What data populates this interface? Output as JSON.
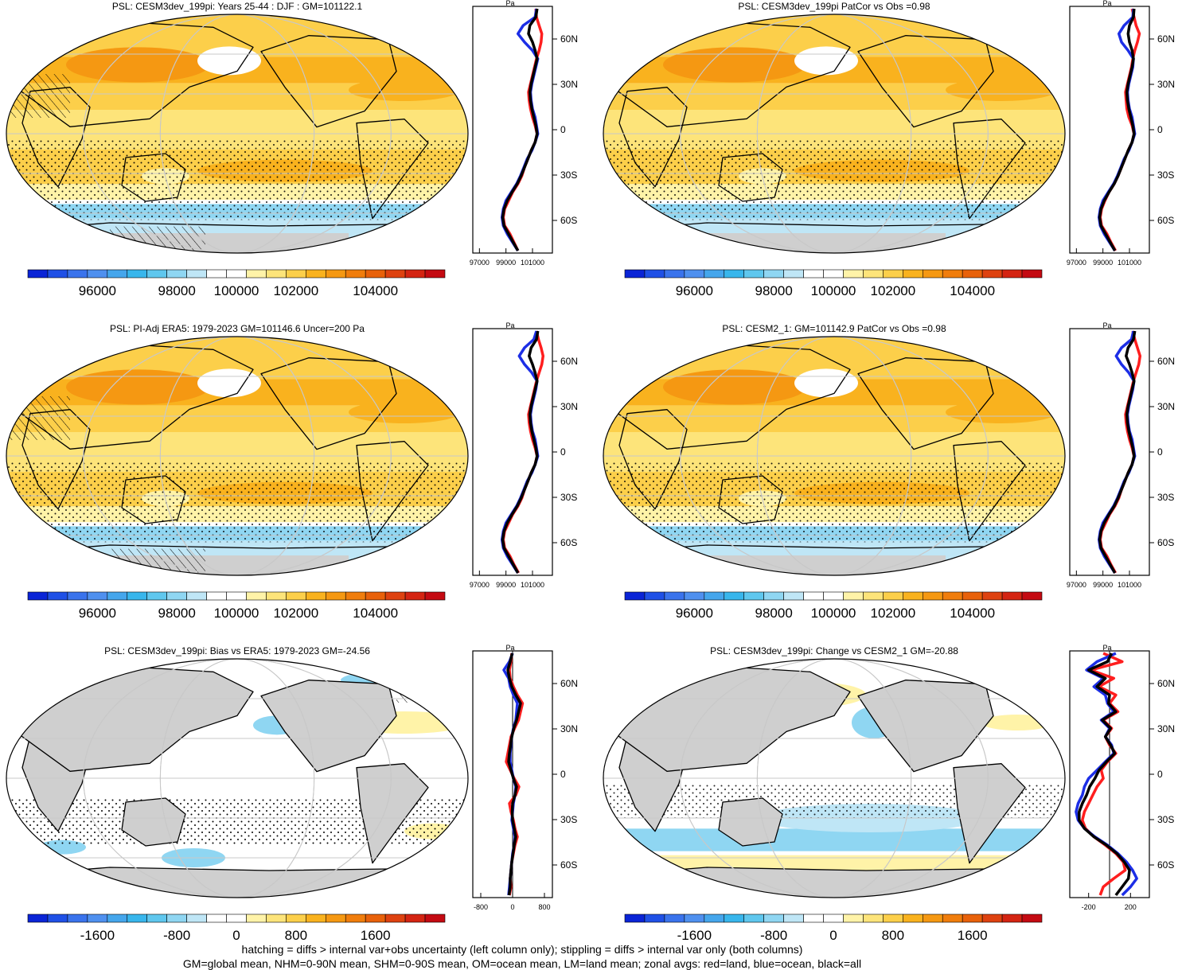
{
  "palettes": {
    "full": [
      "#0a24d6",
      "#1f50e6",
      "#3a73ec",
      "#4f90ef",
      "#45a6ec",
      "#38b6ec",
      "#5fc7ee",
      "#8fd6f2",
      "#bfe6f6",
      "#ffffff",
      "#ffffff",
      "#fff3a8",
      "#fde47a",
      "#fccf4a",
      "#f9b21e",
      "#f59812",
      "#f07d0c",
      "#e8610a",
      "#de4210",
      "#d42412",
      "#c40a12"
    ],
    "diff": [
      "#0a24d6",
      "#1f50e6",
      "#3a73ec",
      "#4f90ef",
      "#45a6ec",
      "#38b6ec",
      "#5fc7ee",
      "#8fd6f2",
      "#bfe6f6",
      "#ffffff",
      "#ffffff",
      "#fff3a8",
      "#fde47a",
      "#fccf4a",
      "#f9b21e",
      "#f59812",
      "#f07d0c",
      "#e8610a",
      "#de4210",
      "#d42412",
      "#c40a12"
    ]
  },
  "colors": {
    "land_line": "#ff1e1e",
    "ocean_line": "#1c2ee6",
    "all_line": "#000000",
    "missing": "#cfcfcf",
    "grid": "#c8c8c8"
  },
  "lat_ticks": [
    "60N",
    "30N",
    "0",
    "30S",
    "60S"
  ],
  "panels": [
    {
      "title": "PSL: CESM3dev_199pi: Years 25-44 : DJF : GM=101122.1",
      "kind": "full",
      "colorbar_labels": [
        "96000",
        "98000",
        "100000",
        "102000",
        "104000"
      ],
      "profile_unit": "Pa",
      "profile_ticks": [
        "97000",
        "99000",
        "101000"
      ],
      "profile_xlim": [
        96500,
        102500
      ],
      "lines": {
        "land": [
          101250,
          101300,
          101500,
          101700,
          101650,
          101500,
          101300,
          101150,
          101000,
          100850,
          100700,
          100750,
          100850,
          101000,
          101200,
          101350,
          101200,
          100900,
          100650,
          100400,
          100200,
          99900,
          99500,
          99200,
          98900,
          98800,
          98900,
          99300,
          99600,
          99900
        ],
        "ocean": [
          101300,
          101200,
          100300,
          99900,
          100400,
          101000,
          101400,
          101250,
          101100,
          100950,
          100850,
          100900,
          101000,
          101200,
          101300,
          101400,
          101200,
          100950,
          100600,
          100350,
          100100,
          99800,
          99400,
          99000,
          98800,
          98700,
          98800,
          99100,
          99500,
          99900
        ],
        "all": [
          101350,
          101250,
          100800,
          100700,
          101000,
          101200,
          101350,
          101200,
          101050,
          100900,
          100800,
          100850,
          100950,
          101100,
          101250,
          101350,
          101200,
          100900,
          100650,
          100400,
          100150,
          99850,
          99450,
          99100,
          98850,
          98750,
          98850,
          99200,
          99550,
          99900
        ]
      }
    },
    {
      "title": "PSL: CESM3dev_199pi PatCor vs Obs =0.98",
      "kind": "full",
      "colorbar_labels": [
        "96000",
        "98000",
        "100000",
        "102000",
        "104000"
      ],
      "profile_unit": "Pa",
      "profile_ticks": [
        "97000",
        "99000",
        "101000"
      ],
      "profile_xlim": [
        96500,
        102500
      ],
      "lines": {
        "land": [
          101200,
          101350,
          101500,
          101750,
          101600,
          101400,
          101250,
          101150,
          101000,
          100850,
          100700,
          100750,
          100800,
          100950,
          101200,
          101350,
          101200,
          100900,
          100650,
          100400,
          100150,
          99850,
          99450,
          99150,
          98900,
          98800,
          98900,
          99300,
          99600,
          99950
        ],
        "ocean": [
          101300,
          101250,
          100600,
          100200,
          100400,
          100900,
          101300,
          101250,
          101100,
          100950,
          100850,
          100900,
          101000,
          101200,
          101300,
          101400,
          101200,
          100950,
          100600,
          100350,
          100100,
          99800,
          99400,
          99000,
          98800,
          98700,
          98800,
          99100,
          99500,
          99900
        ],
        "all": [
          101350,
          101300,
          101000,
          100900,
          101000,
          101200,
          101300,
          101200,
          101050,
          100900,
          100800,
          100850,
          100950,
          101100,
          101250,
          101350,
          101200,
          100900,
          100650,
          100400,
          100150,
          99850,
          99450,
          99100,
          98850,
          98750,
          98850,
          99200,
          99550,
          99900
        ]
      }
    },
    {
      "title": "PSL: PI-Adj ERA5: 1979-2023 GM=101146.6 Uncer=200 Pa",
      "kind": "full",
      "colorbar_labels": [
        "96000",
        "98000",
        "100000",
        "102000",
        "104000"
      ],
      "profile_unit": "Pa",
      "profile_ticks": [
        "97000",
        "99000",
        "101000"
      ],
      "profile_xlim": [
        96500,
        102500
      ],
      "lines": {
        "land": [
          101300,
          101450,
          101650,
          101800,
          101700,
          101500,
          101300,
          101150,
          101000,
          100850,
          100700,
          100750,
          100850,
          101000,
          101200,
          101350,
          101200,
          100900,
          100650,
          100400,
          100200,
          99900,
          99500,
          99200,
          98900,
          98800,
          98900,
          99300,
          99600,
          99950
        ],
        "ocean": [
          101300,
          101100,
          100400,
          100000,
          100400,
          100950,
          101350,
          101250,
          101100,
          100950,
          100850,
          100900,
          101000,
          101200,
          101300,
          101400,
          101200,
          100950,
          100600,
          100350,
          100100,
          99800,
          99400,
          99000,
          98800,
          98700,
          98800,
          99100,
          99500,
          99900
        ],
        "all": [
          101400,
          101300,
          100900,
          100750,
          101000,
          101200,
          101350,
          101200,
          101050,
          100900,
          100800,
          100850,
          100950,
          101100,
          101250,
          101350,
          101200,
          100900,
          100650,
          100400,
          100150,
          99850,
          99450,
          99100,
          98850,
          98750,
          98850,
          99200,
          99550,
          99900
        ]
      }
    },
    {
      "title": "PSL: CESM2_1: GM=101142.9 PatCor vs Obs =0.98",
      "kind": "full",
      "colorbar_labels": [
        "96000",
        "98000",
        "100000",
        "102000",
        "104000"
      ],
      "profile_unit": "Pa",
      "profile_ticks": [
        "97000",
        "99000",
        "101000"
      ],
      "profile_xlim": [
        96500,
        102500
      ],
      "lines": {
        "land": [
          101250,
          101400,
          101600,
          101800,
          101700,
          101500,
          101300,
          101150,
          101000,
          100850,
          100700,
          100750,
          100850,
          101000,
          101200,
          101350,
          101200,
          100900,
          100650,
          100400,
          100200,
          99900,
          99500,
          99200,
          98900,
          98800,
          98900,
          99300,
          99600,
          99950
        ],
        "ocean": [
          101300,
          101150,
          100400,
          100000,
          100400,
          100950,
          101350,
          101250,
          101100,
          100950,
          100850,
          100900,
          101000,
          101200,
          101300,
          101400,
          101200,
          100950,
          100600,
          100350,
          100100,
          99800,
          99400,
          99000,
          98800,
          98700,
          98800,
          99100,
          99500,
          99900
        ],
        "all": [
          101400,
          101300,
          100900,
          100750,
          101000,
          101200,
          101350,
          101200,
          101050,
          100900,
          100800,
          100850,
          100950,
          101100,
          101250,
          101350,
          101200,
          100900,
          100650,
          100400,
          100150,
          99850,
          99450,
          99100,
          98850,
          98750,
          98850,
          99200,
          99550,
          99900
        ]
      }
    },
    {
      "title": "PSL: CESM3dev_199pi: Bias vs ERA5: 1979-2023 GM=-24.56",
      "kind": "diff",
      "colorbar_labels": [
        "-1600",
        "-800",
        "0",
        "800",
        "1600"
      ],
      "profile_unit": "Pa",
      "profile_ticks": [
        "-800",
        "0",
        "800"
      ],
      "profile_xlim": [
        -1000,
        1000
      ],
      "lines": {
        "land": [
          -20,
          -40,
          -80,
          -60,
          20,
          120,
          250,
          200,
          150,
          50,
          -40,
          -80,
          -120,
          -160,
          -60,
          40,
          160,
          80,
          -80,
          -40,
          20,
          60,
          120,
          60,
          20,
          -20,
          -40,
          -60,
          -40,
          -80
        ],
        "ocean": [
          0,
          -80,
          -220,
          -100,
          -60,
          20,
          120,
          100,
          80,
          20,
          -20,
          -40,
          -60,
          -60,
          -20,
          20,
          80,
          60,
          20,
          0,
          -20,
          20,
          60,
          40,
          0,
          -20,
          -40,
          -60,
          -80,
          -100
        ],
        "all": [
          -10,
          -60,
          -120,
          -80,
          -20,
          80,
          200,
          150,
          100,
          30,
          -20,
          -50,
          -80,
          -100,
          -40,
          20,
          100,
          60,
          0,
          -10,
          0,
          40,
          80,
          40,
          10,
          -20,
          -40,
          -60,
          -60,
          -90
        ]
      }
    },
    {
      "title": "PSL: CESM3dev_199pi: Change vs CESM2_1 GM=-20.88",
      "kind": "diff",
      "colorbar_labels": [
        "-1600",
        "-800",
        "0",
        "800",
        "1600"
      ],
      "profile_unit": "Pa",
      "profile_ticks": [
        "-200",
        "200"
      ],
      "profile_xlim": [
        -380,
        380
      ],
      "lines": {
        "land": [
          -60,
          120,
          -180,
          40,
          -100,
          60,
          0,
          80,
          -60,
          20,
          -40,
          0,
          60,
          -20,
          -80,
          -60,
          -120,
          -160,
          -200,
          -240,
          -260,
          -230,
          -150,
          -40,
          60,
          130,
          150,
          40,
          -60,
          -90
        ],
        "ocean": [
          60,
          -120,
          -220,
          -60,
          -150,
          -40,
          -20,
          40,
          -80,
          0,
          -40,
          20,
          40,
          -40,
          -120,
          -200,
          -240,
          -260,
          -300,
          -320,
          -300,
          -240,
          -140,
          -20,
          80,
          160,
          220,
          260,
          200,
          120
        ],
        "all": [
          20,
          -20,
          -200,
          -40,
          -120,
          0,
          -10,
          60,
          -70,
          10,
          -40,
          10,
          50,
          -30,
          -100,
          -140,
          -190,
          -220,
          -260,
          -290,
          -290,
          -240,
          -150,
          -30,
          70,
          140,
          190,
          180,
          120,
          60
        ]
      }
    }
  ],
  "footer": {
    "line1": "hatching = diffs > internal var+obs uncertainty (left column only); stippling = diffs > internal var only (both columns)",
    "line2": "GM=global mean, NHM=0-90N mean, SHM=0-90S mean, OM=ocean mean, LM=land mean; zonal avgs: red=land, blue=ocean, black=all"
  }
}
